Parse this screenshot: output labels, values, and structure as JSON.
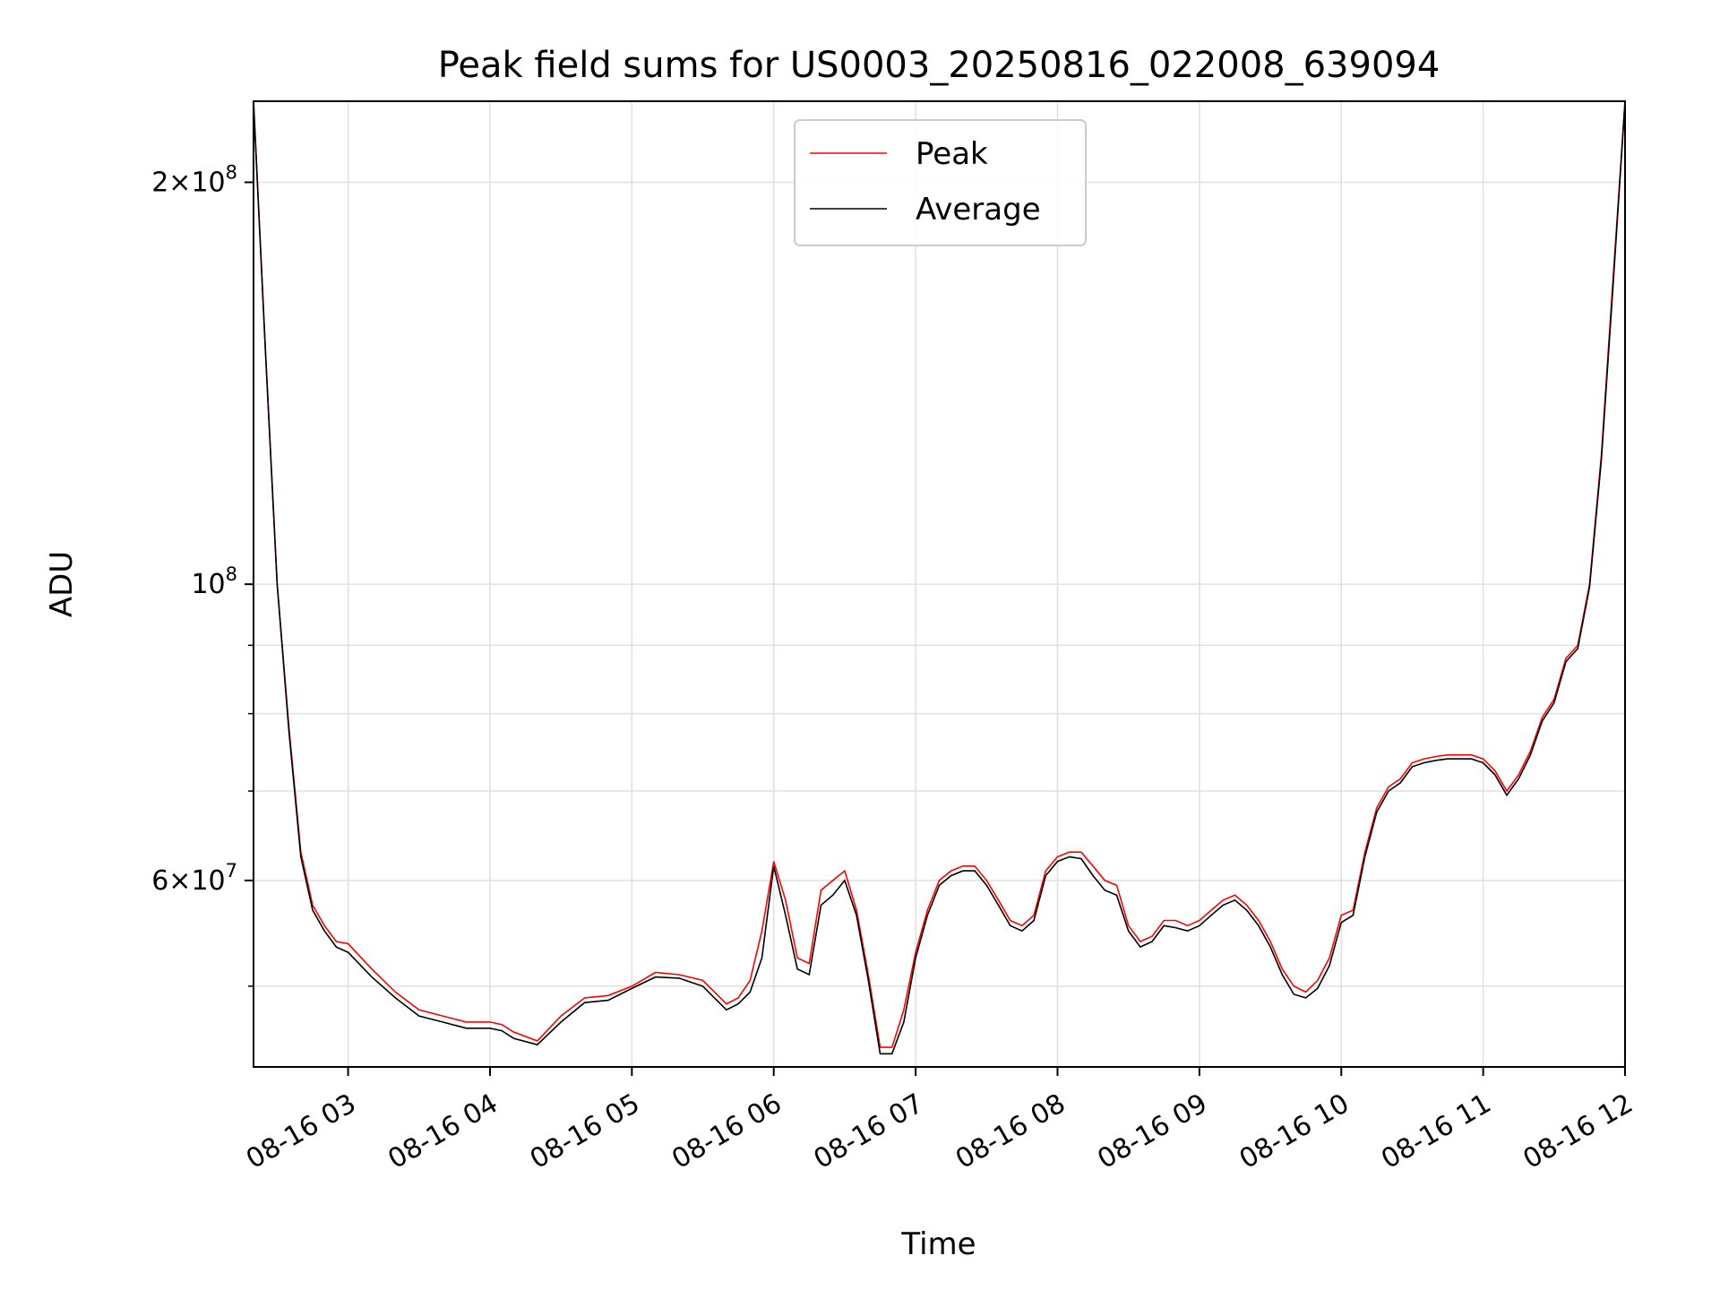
{
  "chart_data": {
    "type": "line",
    "title": "Peak field sums for US0003_20250816_022008_639094",
    "xlabel": "Time",
    "ylabel": "ADU",
    "y_scale": "log",
    "ylim": [
      43500000,
      230000000
    ],
    "xlim": [
      "08-16 02:20",
      "08-16 12:00"
    ],
    "grid": true,
    "legend_position": "upper center",
    "x_ticks": [
      "08-16 03",
      "08-16 04",
      "08-16 05",
      "08-16 06",
      "08-16 07",
      "08-16 08",
      "08-16 09",
      "08-16 10",
      "08-16 11",
      "08-16 12"
    ],
    "y_ticks_major": [
      {
        "value": 60000000,
        "mantissa": "6",
        "exponent": "7"
      },
      {
        "value": 100000000,
        "mantissa": "",
        "exponent": "8"
      },
      {
        "value": 200000000,
        "mantissa": "2",
        "exponent": "8"
      }
    ],
    "y_ticks_minor": [
      50000000,
      70000000,
      80000000,
      90000000,
      300000000
    ],
    "x": [
      "08-16 02:20",
      "08-16 02:25",
      "08-16 02:30",
      "08-16 02:35",
      "08-16 02:40",
      "08-16 02:45",
      "08-16 02:50",
      "08-16 02:55",
      "08-16 03:00",
      "08-16 03:10",
      "08-16 03:20",
      "08-16 03:30",
      "08-16 03:40",
      "08-16 03:50",
      "08-16 04:00",
      "08-16 04:05",
      "08-16 04:10",
      "08-16 04:20",
      "08-16 04:30",
      "08-16 04:40",
      "08-16 04:50",
      "08-16 05:00",
      "08-16 05:10",
      "08-16 05:20",
      "08-16 05:30",
      "08-16 05:40",
      "08-16 05:45",
      "08-16 05:50",
      "08-16 05:55",
      "08-16 06:00",
      "08-16 06:05",
      "08-16 06:10",
      "08-16 06:15",
      "08-16 06:20",
      "08-16 06:25",
      "08-16 06:30",
      "08-16 06:35",
      "08-16 06:40",
      "08-16 06:45",
      "08-16 06:50",
      "08-16 06:55",
      "08-16 07:00",
      "08-16 07:05",
      "08-16 07:10",
      "08-16 07:15",
      "08-16 07:20",
      "08-16 07:25",
      "08-16 07:30",
      "08-16 07:35",
      "08-16 07:40",
      "08-16 07:45",
      "08-16 07:50",
      "08-16 07:55",
      "08-16 08:00",
      "08-16 08:05",
      "08-16 08:10",
      "08-16 08:15",
      "08-16 08:20",
      "08-16 08:25",
      "08-16 08:30",
      "08-16 08:35",
      "08-16 08:40",
      "08-16 08:45",
      "08-16 08:50",
      "08-16 08:55",
      "08-16 09:00",
      "08-16 09:05",
      "08-16 09:10",
      "08-16 09:15",
      "08-16 09:20",
      "08-16 09:25",
      "08-16 09:30",
      "08-16 09:35",
      "08-16 09:40",
      "08-16 09:45",
      "08-16 09:50",
      "08-16 09:55",
      "08-16 10:00",
      "08-16 10:05",
      "08-16 10:10",
      "08-16 10:15",
      "08-16 10:20",
      "08-16 10:25",
      "08-16 10:30",
      "08-16 10:35",
      "08-16 10:40",
      "08-16 10:45",
      "08-16 10:50",
      "08-16 10:55",
      "08-16 11:00",
      "08-16 11:05",
      "08-16 11:10",
      "08-16 11:15",
      "08-16 11:20",
      "08-16 11:25",
      "08-16 11:30",
      "08-16 11:35",
      "08-16 11:40",
      "08-16 11:45",
      "08-16 11:50",
      "08-16 11:55",
      "08-16 12:00"
    ],
    "series": [
      {
        "name": "Peak",
        "color": "#ff0000",
        "values": [
          230000000,
          150000000,
          100000000,
          78000000,
          63000000,
          57500000,
          55500000,
          54000000,
          53800000,
          51500000,
          49500000,
          48000000,
          47500000,
          47000000,
          47000000,
          46800000,
          46200000,
          45500000,
          47500000,
          49000000,
          49200000,
          50000000,
          51200000,
          51000000,
          50500000,
          48500000,
          49000000,
          50500000,
          55000000,
          62000000,
          58000000,
          52500000,
          52000000,
          59000000,
          60000000,
          61000000,
          57000000,
          51000000,
          45000000,
          45000000,
          48000000,
          53000000,
          57000000,
          60000000,
          61000000,
          61500000,
          61500000,
          60000000,
          58000000,
          56000000,
          55500000,
          56500000,
          61000000,
          62500000,
          63000000,
          63000000,
          61500000,
          60000000,
          59500000,
          55500000,
          54000000,
          54500000,
          56000000,
          56000000,
          55500000,
          56000000,
          57000000,
          58000000,
          58500000,
          57500000,
          56000000,
          54000000,
          51500000,
          50000000,
          49500000,
          50500000,
          52500000,
          56500000,
          57000000,
          63000000,
          68000000,
          70500000,
          71500000,
          73500000,
          74000000,
          74300000,
          74500000,
          74500000,
          74500000,
          74000000,
          72500000,
          70000000,
          72000000,
          75000000,
          79500000,
          82000000,
          88000000,
          90000000,
          100000000,
          125000000,
          170000000,
          230000000
        ]
      },
      {
        "name": "Average",
        "color": "#000000",
        "values": [
          230000000,
          150000000,
          100000000,
          77500000,
          62500000,
          57000000,
          55000000,
          53500000,
          53000000,
          50800000,
          49000000,
          47500000,
          47000000,
          46500000,
          46500000,
          46300000,
          45700000,
          45200000,
          47000000,
          48600000,
          48800000,
          49800000,
          50800000,
          50700000,
          50000000,
          48000000,
          48500000,
          49500000,
          52500000,
          61500000,
          56500000,
          51500000,
          51000000,
          57500000,
          58500000,
          60000000,
          56500000,
          50500000,
          44500000,
          44500000,
          47000000,
          52500000,
          56500000,
          59500000,
          60500000,
          61000000,
          61000000,
          59500000,
          57500000,
          55500000,
          55000000,
          56000000,
          60500000,
          62000000,
          62500000,
          62300000,
          60500000,
          59000000,
          58500000,
          55000000,
          53500000,
          54000000,
          55500000,
          55300000,
          55000000,
          55500000,
          56500000,
          57500000,
          58000000,
          57000000,
          55500000,
          53500000,
          51000000,
          49300000,
          49000000,
          49800000,
          51800000,
          55800000,
          56500000,
          62500000,
          67500000,
          70000000,
          71000000,
          73000000,
          73500000,
          73800000,
          74000000,
          74000000,
          74000000,
          73500000,
          72000000,
          69500000,
          71500000,
          74500000,
          79000000,
          81500000,
          87500000,
          89500000,
          99500000,
          124000000,
          168000000,
          230000000
        ]
      }
    ]
  }
}
